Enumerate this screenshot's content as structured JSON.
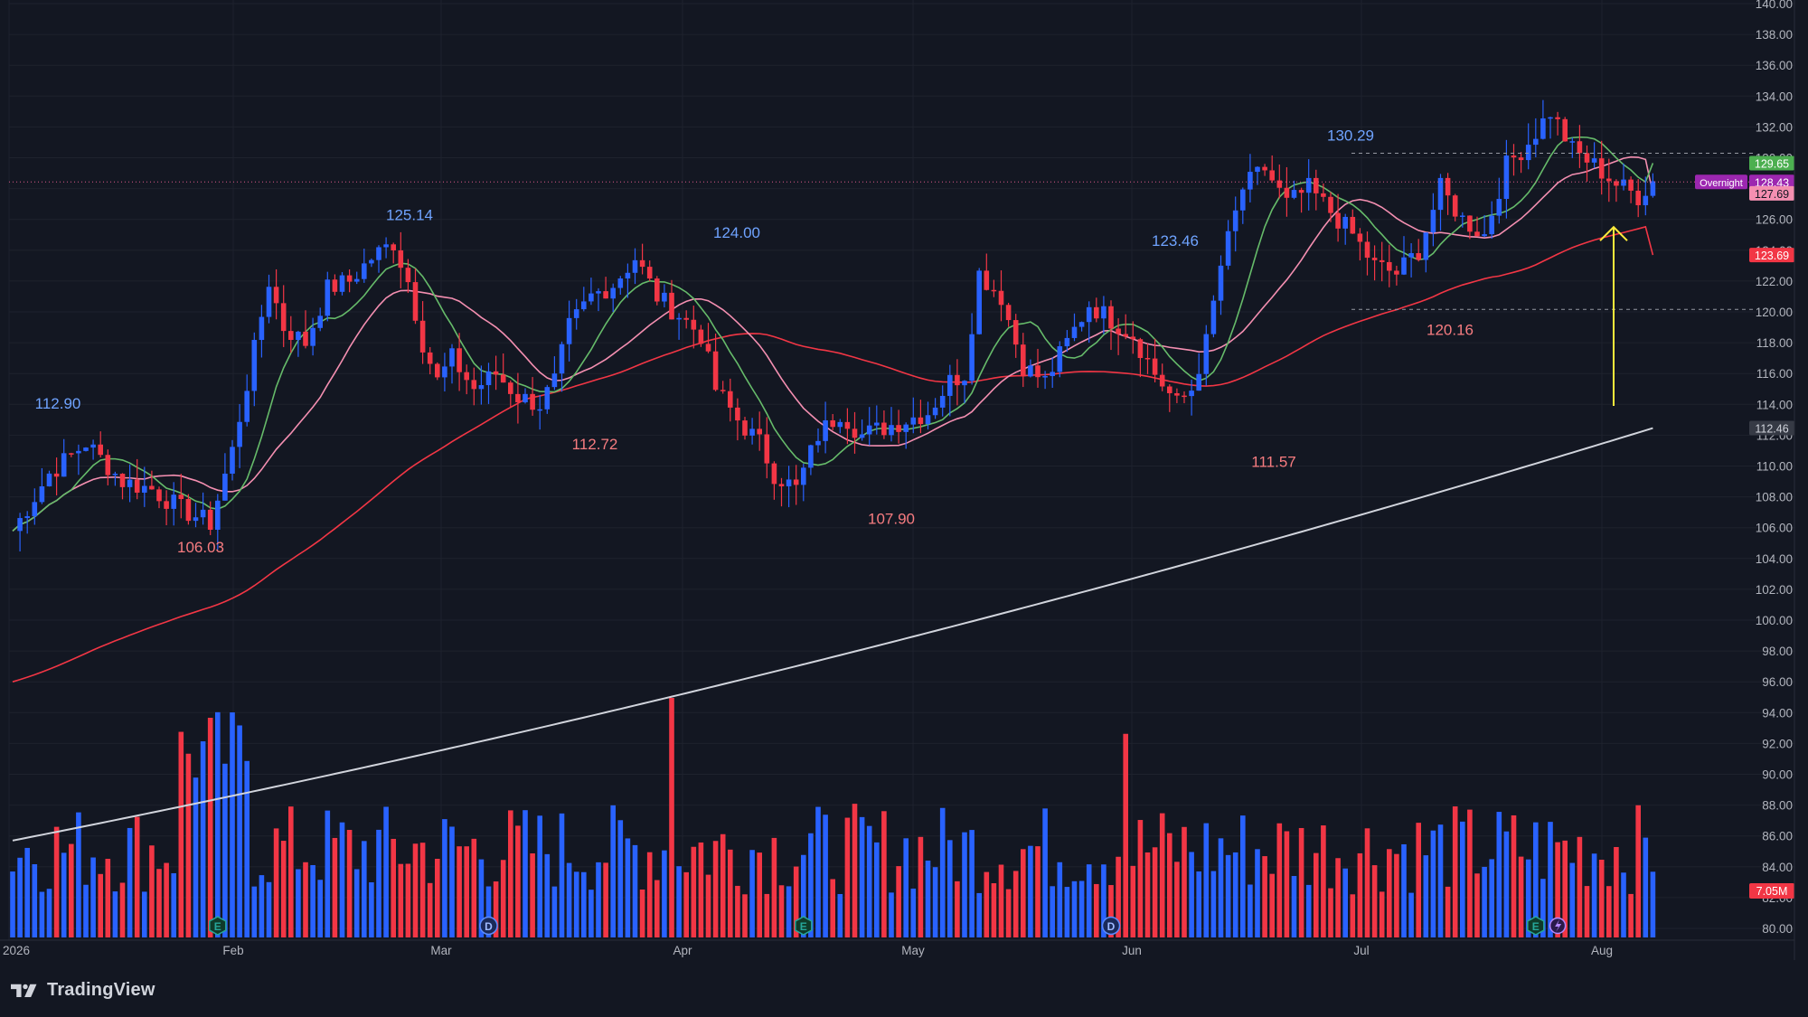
{
  "brand": {
    "name": "TradingView"
  },
  "colors": {
    "background": "#131722",
    "up": "#2962ff",
    "down": "#f23645",
    "grid": "#1e222d",
    "axis_text": "#b2b5be",
    "label_high": "#6fa3ff",
    "label_low": "#f77c80",
    "ma_short": "#66bb6a",
    "ma_mid": "#f48fb1",
    "ma_long": "#f23645",
    "ma_longest": "#d1d4dc",
    "arrow": "#ffeb3b",
    "overnight": "#9c27b0"
  },
  "chart_data": {
    "type": "candlestick",
    "x_axis": {
      "labels": [
        "2026",
        "Feb",
        "Mar",
        "Apr",
        "May",
        "Jun",
        "Jul",
        "Aug"
      ]
    },
    "y_axis": {
      "min": 80,
      "max": 140,
      "step": 2,
      "labels": [
        "140.00",
        "138.00",
        "136.00",
        "134.00",
        "132.00",
        "130.00",
        "128.00",
        "126.00",
        "124.00",
        "122.00",
        "120.00",
        "118.00",
        "116.00",
        "114.00",
        "112.00",
        "110.00",
        "108.00",
        "106.00",
        "104.00",
        "102.00",
        "100.00",
        "98.00",
        "96.00",
        "94.00",
        "92.00",
        "90.00",
        "88.00",
        "86.00",
        "84.00",
        "82.00",
        "80.00"
      ]
    },
    "swing_labels": [
      {
        "text": "112.90",
        "kind": "high",
        "value": 112.9
      },
      {
        "text": "106.03",
        "kind": "low",
        "value": 106.03
      },
      {
        "text": "125.14",
        "kind": "high",
        "value": 125.14
      },
      {
        "text": "112.72",
        "kind": "low",
        "value": 112.72
      },
      {
        "text": "124.00",
        "kind": "high",
        "value": 124.0
      },
      {
        "text": "107.90",
        "kind": "low",
        "value": 107.9
      },
      {
        "text": "123.46",
        "kind": "high",
        "value": 123.46
      },
      {
        "text": "111.57",
        "kind": "low",
        "value": 111.57
      },
      {
        "text": "130.29",
        "kind": "high",
        "value": 130.29
      },
      {
        "text": "120.16",
        "kind": "low",
        "value": 120.16
      }
    ],
    "price_tags": [
      {
        "value": 129.65,
        "text": "129.65",
        "color": "#4caf50"
      },
      {
        "value": 128.43,
        "text": "128.43",
        "color": "#9c27b0",
        "label": "Overnight"
      },
      {
        "value": 127.69,
        "text": "127.69",
        "color": "#f48fb1"
      },
      {
        "value": 123.69,
        "text": "123.69",
        "color": "#f23645"
      },
      {
        "value": 112.46,
        "text": "112.46",
        "color": "#d1d4dc"
      }
    ],
    "volume_tag": {
      "text": "7.05M",
      "color": "#f23645"
    },
    "reference_lines": [
      {
        "value": 130.29,
        "style": "dashed"
      },
      {
        "value": 120.16,
        "style": "dashed"
      },
      {
        "value": 128.43,
        "style": "dotted"
      }
    ],
    "moving_averages": [
      {
        "key": "ma_longest",
        "color": "#d1d4dc",
        "start": 85.7,
        "end": 112.46
      },
      {
        "key": "ma_long",
        "color": "#f23645",
        "start": 96.0,
        "end": 123.69
      },
      {
        "key": "ma_mid",
        "color": "#f48fb1",
        "start": 102.6,
        "end": 127.69
      },
      {
        "key": "ma_short",
        "color": "#66bb6a",
        "start": 105.0,
        "end": 129.65
      }
    ],
    "price_path": [
      [
        0,
        105.8
      ],
      [
        5,
        109.5
      ],
      [
        10,
        111.5
      ],
      [
        15,
        109
      ],
      [
        19,
        108.5
      ],
      [
        23,
        107.2
      ],
      [
        27,
        106.3
      ],
      [
        30,
        111
      ],
      [
        33,
        117.5
      ],
      [
        35,
        122
      ],
      [
        37,
        119
      ],
      [
        40,
        118
      ],
      [
        43,
        121.5
      ],
      [
        46,
        122
      ],
      [
        49,
        123.5
      ],
      [
        52,
        124.5
      ],
      [
        54,
        122
      ],
      [
        56,
        118
      ],
      [
        58,
        115.5
      ],
      [
        60,
        117
      ],
      [
        63,
        115
      ],
      [
        66,
        116
      ],
      [
        69,
        114.5
      ],
      [
        72,
        114
      ],
      [
        74,
        115.5
      ],
      [
        76,
        119
      ],
      [
        79,
        121
      ],
      [
        82,
        121.8
      ],
      [
        85,
        123.5
      ],
      [
        88,
        121
      ],
      [
        91,
        119.8
      ],
      [
        94,
        118.5
      ],
      [
        96,
        115
      ],
      [
        99,
        113
      ],
      [
        102,
        111.5
      ],
      [
        104,
        109.5
      ],
      [
        107,
        108.5
      ],
      [
        110,
        112
      ],
      [
        113,
        113.5
      ],
      [
        116,
        112
      ],
      [
        119,
        112.5
      ],
      [
        122,
        113
      ],
      [
        125,
        113.5
      ],
      [
        128,
        115.5
      ],
      [
        130,
        116
      ],
      [
        132,
        122.5
      ],
      [
        135,
        121
      ],
      [
        138,
        116.5
      ],
      [
        141,
        115.5
      ],
      [
        144,
        118
      ],
      [
        147,
        120.5
      ],
      [
        150,
        119.5
      ],
      [
        153,
        118.5
      ],
      [
        156,
        116
      ],
      [
        159,
        114
      ],
      [
        161,
        115
      ],
      [
        163,
        118
      ],
      [
        165,
        123
      ],
      [
        168,
        128
      ],
      [
        171,
        129.3
      ],
      [
        174,
        127
      ],
      [
        177,
        128
      ],
      [
        180,
        126.5
      ],
      [
        183,
        125
      ],
      [
        186,
        123
      ],
      [
        189,
        122.5
      ],
      [
        192,
        124
      ],
      [
        195,
        128
      ],
      [
        198,
        126
      ],
      [
        201,
        125
      ],
      [
        204,
        129.5
      ],
      [
        207,
        131
      ],
      [
        210,
        133
      ],
      [
        213,
        130.5
      ],
      [
        216,
        129.5
      ],
      [
        219,
        128.3
      ],
      [
        222,
        127.5
      ],
      [
        224,
        128.5
      ]
    ],
    "volume_spikes": [
      {
        "index": 90,
        "value": 100
      },
      {
        "index": 152,
        "value": 85
      }
    ],
    "event_markers": [
      {
        "letter": "E",
        "index": 28,
        "kind": "earnings"
      },
      {
        "letter": "D",
        "index": 65,
        "kind": "dividend"
      },
      {
        "letter": "E",
        "index": 108,
        "kind": "earnings"
      },
      {
        "letter": "D",
        "index": 150,
        "kind": "dividend"
      },
      {
        "letter": "E",
        "index": 208,
        "kind": "earnings"
      }
    ]
  }
}
